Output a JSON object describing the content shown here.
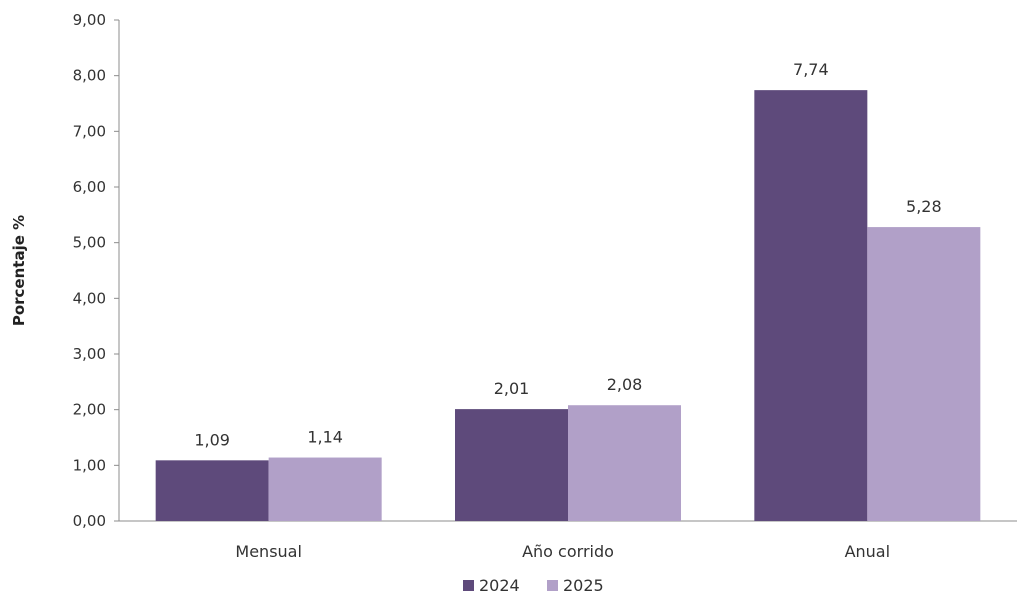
{
  "chart_data": {
    "type": "bar",
    "ylabel": "Porcentaje %",
    "ylim": [
      0,
      9
    ],
    "ytick_step": 1,
    "categories": [
      "Mensual",
      "Año corrido",
      "Anual"
    ],
    "series": [
      {
        "name": "2024",
        "values": [
          1.09,
          2.01,
          7.74
        ],
        "color": "#5e4a7b"
      },
      {
        "name": "2025",
        "values": [
          1.14,
          2.08,
          5.28
        ],
        "color": "#b1a0c8"
      }
    ],
    "grid": false,
    "legend": "bottom-center",
    "decimal_separator": ","
  }
}
